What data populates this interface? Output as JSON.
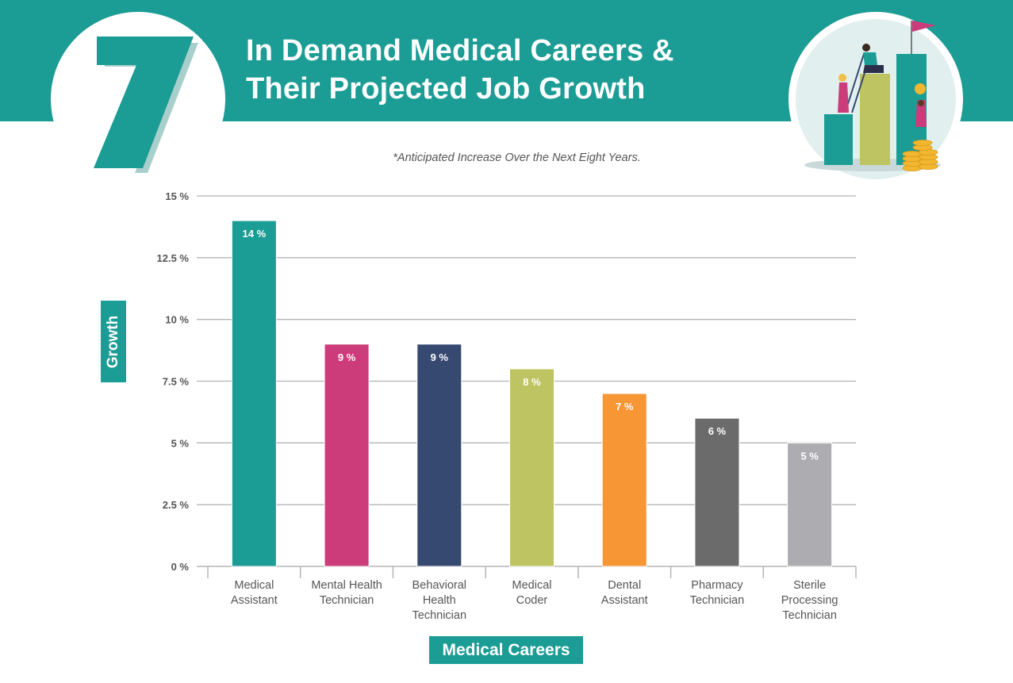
{
  "header": {
    "number": "7",
    "title_line1": "In Demand Medical Careers &",
    "title_line2": "Their Projected Job Growth",
    "subtitle": "*Anticipated Increase Over the Next Eight Years.",
    "illustration": "people-climbing-bar-chart-illustration"
  },
  "colors": {
    "brand": "#1b9c94",
    "bars": [
      "#1b9c94",
      "#cc3b7a",
      "#354971",
      "#bfc463",
      "#f79634",
      "#6b6b6b",
      "#adadb1"
    ]
  },
  "chart_data": {
    "type": "bar",
    "title": "In Demand Medical Careers & Their Projected Job Growth",
    "subtitle": "*Anticipated Increase Over the Next Eight Years.",
    "xlabel": "Medical Careers",
    "ylabel": "Growth",
    "categories": [
      [
        "Medical",
        "Assistant"
      ],
      [
        "Mental Health",
        "Technician"
      ],
      [
        "Behavioral",
        "Health",
        "Technician"
      ],
      [
        "Medical",
        "Coder"
      ],
      [
        "Dental",
        "Assistant"
      ],
      [
        "Pharmacy",
        "Technician"
      ],
      [
        "Sterile",
        "Processing",
        "Technician"
      ]
    ],
    "values": [
      14,
      9,
      9,
      8,
      7,
      6,
      5
    ],
    "value_labels": [
      "14 %",
      "9 %",
      "9 %",
      "8 %",
      "7 %",
      "6 %",
      "5 %"
    ],
    "ylim": [
      0,
      15
    ],
    "yticks": [
      0,
      2.5,
      5,
      7.5,
      10,
      12.5,
      15
    ],
    "ytick_labels": [
      "0 %",
      "2.5 %",
      "5 %",
      "7.5 %",
      "10 %",
      "12.5 %",
      "15 %"
    ],
    "grid": true,
    "legend": "none"
  }
}
